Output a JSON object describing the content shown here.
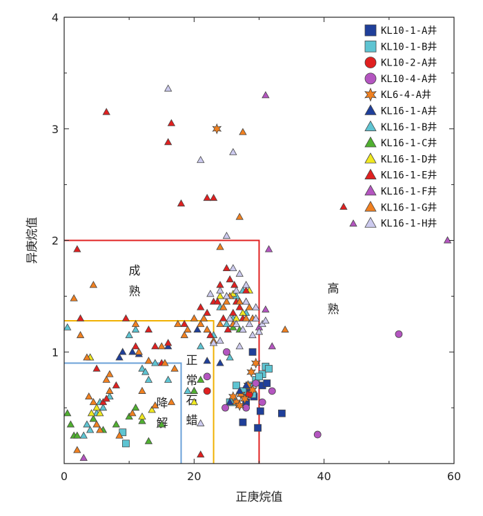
{
  "chart_data": {
    "type": "scatter",
    "title": "",
    "xlabel": "正庚烷值",
    "ylabel": "异庚烷值",
    "xlim": [
      0,
      60
    ],
    "ylim": [
      0,
      4
    ],
    "xticks": [
      "0",
      "20",
      "40",
      "60"
    ],
    "yticks": [
      "1",
      "2",
      "3",
      "4"
    ],
    "legend_position": "top-right",
    "zones": [
      {
        "name": "成熟",
        "label": [
          "成",
          "熟"
        ],
        "x_max": 30,
        "y_max": 2,
        "color": "#e02020"
      },
      {
        "name": "正常石蜡",
        "label": [
          "正",
          "常",
          "石",
          "蜡"
        ],
        "x_max": 23,
        "y_max": 1.28,
        "color": "#f0b000"
      },
      {
        "name": "降解",
        "label": [
          "降",
          "解"
        ],
        "x_max": 18,
        "y_max": 0.9,
        "color": "#6aa0d8"
      },
      {
        "name": "高熟",
        "label": [
          "高",
          "熟"
        ]
      }
    ],
    "series": [
      {
        "name": "KL10-1-A井",
        "marker": "square",
        "color": "#1f3f9a",
        "points": [
          [
            27.5,
            0.37
          ],
          [
            29.8,
            0.32
          ],
          [
            30.2,
            0.47
          ],
          [
            33.5,
            0.45
          ],
          [
            29,
            1.0
          ],
          [
            28,
            0.55
          ],
          [
            28.5,
            0.65
          ],
          [
            29.2,
            0.6
          ],
          [
            30.5,
            0.7
          ],
          [
            31.2,
            0.72
          ],
          [
            27.8,
            0.62
          ]
        ]
      },
      {
        "name": "KL10-1-B井",
        "marker": "square",
        "color": "#5ec4d2",
        "points": [
          [
            9,
            0.28
          ],
          [
            9.5,
            0.18
          ],
          [
            25.5,
            0.55
          ],
          [
            26.5,
            0.7
          ],
          [
            27.5,
            0.65
          ],
          [
            28.5,
            0.7
          ],
          [
            29.5,
            0.75
          ],
          [
            30.5,
            0.8
          ],
          [
            31,
            0.87
          ],
          [
            31.5,
            0.85
          ],
          [
            30,
            0.78
          ],
          [
            26,
            0.55
          ],
          [
            29,
            0.62
          ]
        ]
      },
      {
        "name": "KL10-2-A井",
        "marker": "circle",
        "color": "#e02020",
        "points": [
          [
            22,
            0.65
          ],
          [
            28.5,
            0.62
          ]
        ]
      },
      {
        "name": "KL10-4-A井",
        "marker": "circle",
        "color": "#b455c0",
        "points": [
          [
            39,
            0.26
          ],
          [
            51.5,
            1.16
          ],
          [
            25,
            1.0
          ],
          [
            22,
            0.78
          ],
          [
            24.8,
            0.5
          ],
          [
            28,
            0.5
          ],
          [
            30.5,
            0.55
          ],
          [
            29.5,
            0.72
          ],
          [
            32,
            0.65
          ]
        ]
      },
      {
        "name": "KL6-4-A井",
        "marker": "star",
        "color": "#f08020",
        "points": [
          [
            23.5,
            3.0
          ],
          [
            26.5,
            0.55
          ],
          [
            27.2,
            0.62
          ],
          [
            27.8,
            0.58
          ],
          [
            28.3,
            0.7
          ],
          [
            28.8,
            0.82
          ],
          [
            29.5,
            0.9
          ],
          [
            29,
            0.66
          ],
          [
            26,
            0.6
          ],
          [
            27,
            0.52
          ]
        ]
      },
      {
        "name": "KL16-1-A井",
        "marker": "triangle",
        "color": "#1f3f9a",
        "points": [
          [
            7,
            0.6
          ],
          [
            8.5,
            0.95
          ],
          [
            9,
            1.0
          ],
          [
            10.5,
            1.0
          ],
          [
            11.5,
            0.98
          ],
          [
            16,
            1.05
          ],
          [
            20.5,
            1.2
          ],
          [
            22,
            0.92
          ],
          [
            24,
            0.9
          ],
          [
            25.5,
            0.55
          ],
          [
            27,
            0.65
          ],
          [
            28,
            0.7
          ]
        ]
      },
      {
        "name": "KL16-1-B井",
        "marker": "triangle",
        "color": "#5ec4d2",
        "points": [
          [
            0.5,
            1.22
          ],
          [
            3,
            0.25
          ],
          [
            3.5,
            0.35
          ],
          [
            4,
            0.3
          ],
          [
            4.5,
            0.4
          ],
          [
            5,
            0.45
          ],
          [
            5.5,
            0.55
          ],
          [
            6,
            0.5
          ],
          [
            7,
            0.6
          ],
          [
            10,
            1.15
          ],
          [
            11,
            1.2
          ],
          [
            12,
            0.85
          ],
          [
            12.5,
            0.82
          ],
          [
            13,
            0.75
          ],
          [
            14,
            0.9
          ],
          [
            16,
            0.75
          ],
          [
            19,
            0.65
          ],
          [
            20,
            0.65
          ],
          [
            21,
            1.05
          ],
          [
            23,
            1.15
          ],
          [
            25,
            1.25
          ],
          [
            26,
            1.3
          ],
          [
            27,
            1.45
          ],
          [
            28,
            1.35
          ],
          [
            24,
            1.4
          ],
          [
            26.5,
            1.5
          ],
          [
            27.5,
            1.55
          ],
          [
            25.5,
            0.95
          ]
        ]
      },
      {
        "name": "KL16-1-C井",
        "marker": "triangle",
        "color": "#50b030",
        "points": [
          [
            0.5,
            0.45
          ],
          [
            1,
            0.35
          ],
          [
            1.5,
            0.25
          ],
          [
            2,
            0.25
          ],
          [
            4,
            0.95
          ],
          [
            4.5,
            0.4
          ],
          [
            5,
            0.35
          ],
          [
            6,
            0.3
          ],
          [
            8,
            0.35
          ],
          [
            10,
            0.42
          ],
          [
            11,
            0.5
          ],
          [
            12,
            0.38
          ],
          [
            13,
            0.2
          ],
          [
            15,
            0.35
          ],
          [
            20,
            0.65
          ],
          [
            21,
            0.75
          ],
          [
            26,
            1.22
          ],
          [
            27,
            1.2
          ]
        ]
      },
      {
        "name": "KL16-1-D井",
        "marker": "triangle",
        "color": "#f0e820",
        "points": [
          [
            4,
            0.95
          ],
          [
            4.2,
            0.45
          ],
          [
            5,
            0.5
          ],
          [
            5.5,
            0.45
          ],
          [
            12,
            0.42
          ],
          [
            13.5,
            0.48
          ],
          [
            20,
            0.55
          ],
          [
            26,
            1.25
          ],
          [
            26.5,
            1.3
          ],
          [
            27,
            1.45
          ],
          [
            27.5,
            1.35
          ],
          [
            28,
            1.45
          ],
          [
            28.5,
            1.55
          ],
          [
            24,
            1.5
          ],
          [
            26,
            1.52
          ]
        ]
      },
      {
        "name": "KL16-1-E井",
        "marker": "triangle",
        "color": "#e02020",
        "points": [
          [
            6.5,
            3.15
          ],
          [
            16.5,
            3.05
          ],
          [
            16,
            2.88
          ],
          [
            22,
            2.38
          ],
          [
            23,
            2.38
          ],
          [
            18,
            2.33
          ],
          [
            2,
            1.92
          ],
          [
            2.5,
            1.3
          ],
          [
            5,
            0.85
          ],
          [
            6,
            0.55
          ],
          [
            6.5,
            0.58
          ],
          [
            8,
            0.7
          ],
          [
            9.5,
            1.3
          ],
          [
            11,
            1.05
          ],
          [
            13,
            1.2
          ],
          [
            14,
            1.05
          ],
          [
            15,
            0.9
          ],
          [
            16,
            1.08
          ],
          [
            18.5,
            1.25
          ],
          [
            21,
            1.4
          ],
          [
            22,
            1.35
          ],
          [
            23,
            1.45
          ],
          [
            24,
            1.6
          ],
          [
            25,
            1.75
          ],
          [
            25.5,
            1.65
          ],
          [
            26,
            1.35
          ],
          [
            26.5,
            1.45
          ],
          [
            27,
            1.4
          ],
          [
            28,
            1.55
          ],
          [
            24.5,
            1.3
          ],
          [
            25.2,
            1.2
          ],
          [
            22.5,
            1.15
          ],
          [
            21,
            0.08
          ],
          [
            43,
            2.3
          ],
          [
            23.6,
            1.45
          ],
          [
            26.2,
            1.6
          ],
          [
            27.5,
            1.3
          ]
        ]
      },
      {
        "name": "KL16-1-F井",
        "marker": "triangle",
        "color": "#b455c0",
        "points": [
          [
            31,
            3.3
          ],
          [
            59,
            2.0
          ],
          [
            44.5,
            2.15
          ],
          [
            31.5,
            1.92
          ],
          [
            3,
            0.05
          ],
          [
            32,
            1.05
          ],
          [
            31,
            1.38
          ],
          [
            30,
            1.22
          ]
        ]
      },
      {
        "name": "KL16-1-G井",
        "marker": "triangle",
        "color": "#f08020",
        "points": [
          [
            27.5,
            2.97
          ],
          [
            27,
            2.21
          ],
          [
            24,
            1.94
          ],
          [
            1.5,
            1.48
          ],
          [
            2.5,
            1.15
          ],
          [
            4.5,
            1.6
          ],
          [
            3.5,
            0.95
          ],
          [
            3.8,
            0.6
          ],
          [
            4.5,
            0.55
          ],
          [
            5,
            0.35
          ],
          [
            5.5,
            0.3
          ],
          [
            6.5,
            0.75
          ],
          [
            7,
            0.8
          ],
          [
            7,
            0.65
          ],
          [
            8.5,
            0.25
          ],
          [
            10.5,
            0.45
          ],
          [
            11,
            1.25
          ],
          [
            11.5,
            1.0
          ],
          [
            12,
            0.65
          ],
          [
            13,
            0.92
          ],
          [
            14,
            0.52
          ],
          [
            15,
            1.05
          ],
          [
            15.5,
            0.9
          ],
          [
            17,
            0.85
          ],
          [
            17.5,
            1.25
          ],
          [
            18.5,
            1.15
          ],
          [
            19,
            1.2
          ],
          [
            20,
            1.3
          ],
          [
            21.5,
            1.3
          ],
          [
            23,
            1.1
          ],
          [
            24,
            1.25
          ],
          [
            24.5,
            1.4
          ],
          [
            25,
            1.45
          ],
          [
            25.5,
            1.5
          ],
          [
            26,
            1.25
          ],
          [
            27,
            1.45
          ],
          [
            28,
            1.3
          ],
          [
            22,
            1.2
          ],
          [
            21,
            1.25
          ],
          [
            2,
            0.12
          ],
          [
            16.5,
            0.55
          ],
          [
            28.5,
            1.4
          ],
          [
            29,
            1.3
          ],
          [
            34,
            1.2
          ]
        ]
      },
      {
        "name": "KL16-1-H井",
        "marker": "triangle",
        "color": "#cccaee",
        "points": [
          [
            16,
            3.36
          ],
          [
            26,
            2.79
          ],
          [
            21,
            2.72
          ],
          [
            25,
            2.04
          ],
          [
            26,
            1.75
          ],
          [
            27,
            1.7
          ],
          [
            24,
            1.55
          ],
          [
            25,
            1.5
          ],
          [
            26.5,
            1.55
          ],
          [
            28,
            1.45
          ],
          [
            25.5,
            1.3
          ],
          [
            26.5,
            1.25
          ],
          [
            27.5,
            1.2
          ],
          [
            28.5,
            1.25
          ],
          [
            29.5,
            1.3
          ],
          [
            30.5,
            1.25
          ],
          [
            30,
            1.18
          ],
          [
            24,
            1.1
          ],
          [
            23,
            1.08
          ],
          [
            21,
            0.36
          ],
          [
            22.5,
            1.52
          ],
          [
            27,
            1.05
          ],
          [
            29,
            1.15
          ],
          [
            31,
            1.28
          ],
          [
            29.5,
            1.4
          ],
          [
            28,
            1.6
          ]
        ]
      }
    ]
  }
}
